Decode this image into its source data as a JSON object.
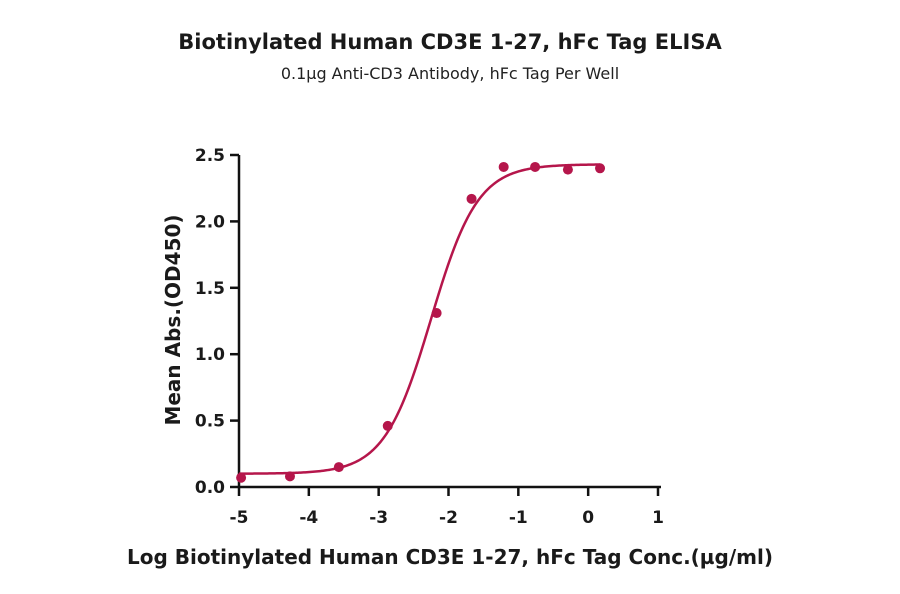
{
  "chart_data": {
    "type": "scatter",
    "title": "Biotinylated Human CD3E 1-27, hFc Tag ELISA",
    "subtitle": "0.1µg Anti-CD3 Antibody, hFc Tag Per Well",
    "xlabel": "Log Biotinylated Human CD3E 1-27, hFc Tag Conc.(µg/ml)",
    "ylabel": "Mean Abs.(OD450)",
    "xlim": [
      -5,
      1
    ],
    "ylim": [
      0,
      2.5
    ],
    "x_ticks": [
      -5,
      -4,
      -3,
      -2,
      -1,
      0,
      1
    ],
    "x_tick_labels": [
      "-5",
      "-4",
      "-3",
      "-2",
      "-1",
      "0",
      "1"
    ],
    "y_ticks": [
      0,
      0.5,
      1.0,
      1.5,
      2.0,
      2.5
    ],
    "y_tick_labels": [
      "0.0",
      "0.5",
      "1.0",
      "1.5",
      "2.0",
      "2.5"
    ],
    "grid": false,
    "legend": "none",
    "color": "#b5164b",
    "points": [
      {
        "x": -4.97,
        "y": 0.07
      },
      {
        "x": -4.27,
        "y": 0.08
      },
      {
        "x": -3.57,
        "y": 0.15
      },
      {
        "x": -2.87,
        "y": 0.46
      },
      {
        "x": -2.17,
        "y": 1.31
      },
      {
        "x": -1.67,
        "y": 2.17
      },
      {
        "x": -1.21,
        "y": 2.41
      },
      {
        "x": -0.76,
        "y": 2.41
      },
      {
        "x": -0.29,
        "y": 2.39
      },
      {
        "x": 0.17,
        "y": 2.4
      }
    ],
    "fit_curve": {
      "model": "4PL",
      "bottom": 0.1,
      "top": 2.43,
      "log_ec50": -2.25,
      "hill_slope": 1.3,
      "x_range": [
        -5,
        0.17
      ]
    }
  }
}
